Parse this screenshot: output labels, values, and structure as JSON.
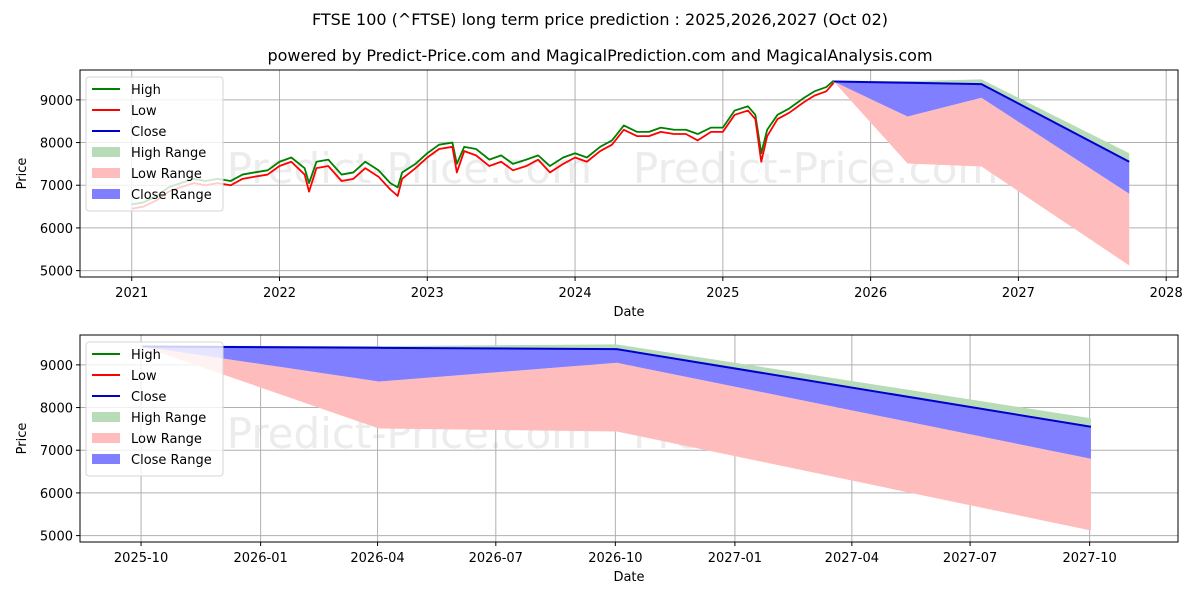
{
  "title": "FTSE 100 (^FTSE) long term price prediction : 2025,2026,2027 (Oct 02)",
  "subtitle": "powered by Predict-Price.com and MagicalPrediction.com and MagicalAnalysis.com",
  "watermark": "Predict-Price.com",
  "colors": {
    "high": "#008000",
    "low": "#ff0000",
    "close": "#0000cc",
    "high_range": "#b7dcb7",
    "low_range": "#ffbcbc",
    "close_range": "#7f7fff",
    "grid": "#b0b0b0",
    "watermark": "#ececec"
  },
  "legend": {
    "placement": "upper-left",
    "items": [
      {
        "label": "High",
        "kind": "line",
        "color": "#008000"
      },
      {
        "label": "Low",
        "kind": "line",
        "color": "#ff0000"
      },
      {
        "label": "Close",
        "kind": "line",
        "color": "#0000cc"
      },
      {
        "label": "High Range",
        "kind": "patch",
        "color": "#b7dcb7"
      },
      {
        "label": "Low Range",
        "kind": "patch",
        "color": "#ffbcbc"
      },
      {
        "label": "Close Range",
        "kind": "patch",
        "color": "#7f7fff"
      }
    ]
  },
  "chart_data": [
    {
      "type": "line",
      "name": "long-term-overview",
      "xlabel": "Date",
      "ylabel": "Price",
      "xlim": [
        2020.65,
        2028.08
      ],
      "ylim": [
        4850,
        9700
      ],
      "xticks": [
        2021,
        2022,
        2023,
        2024,
        2025,
        2026,
        2027,
        2028
      ],
      "xtick_labels": [
        "2021",
        "2022",
        "2023",
        "2024",
        "2025",
        "2026",
        "2027",
        "2028"
      ],
      "yticks": [
        5000,
        6000,
        7000,
        8000,
        9000
      ],
      "ytick_labels": [
        "5000",
        "6000",
        "7000",
        "8000",
        "9000"
      ],
      "grid": true,
      "historical": {
        "x": [
          2021.0,
          2021.08,
          2021.17,
          2021.25,
          2021.33,
          2021.42,
          2021.5,
          2021.58,
          2021.67,
          2021.75,
          2021.83,
          2021.92,
          2022.0,
          2022.08,
          2022.17,
          2022.2,
          2022.25,
          2022.33,
          2022.42,
          2022.5,
          2022.58,
          2022.67,
          2022.75,
          2022.8,
          2022.83,
          2022.92,
          2023.0,
          2023.08,
          2023.17,
          2023.2,
          2023.25,
          2023.33,
          2023.42,
          2023.5,
          2023.58,
          2023.67,
          2023.75,
          2023.83,
          2023.92,
          2024.0,
          2024.08,
          2024.17,
          2024.25,
          2024.33,
          2024.42,
          2024.5,
          2024.58,
          2024.67,
          2024.75,
          2024.83,
          2024.92,
          2025.0,
          2025.08,
          2025.17,
          2025.22,
          2025.26,
          2025.3,
          2025.37,
          2025.45,
          2025.55,
          2025.62,
          2025.7,
          2025.75
        ],
        "high": [
          6550,
          6600,
          6750,
          6950,
          7050,
          7150,
          7100,
          7150,
          7100,
          7250,
          7300,
          7350,
          7550,
          7650,
          7400,
          7050,
          7550,
          7600,
          7250,
          7300,
          7550,
          7350,
          7050,
          6950,
          7300,
          7500,
          7750,
          7950,
          8000,
          7500,
          7900,
          7850,
          7600,
          7700,
          7500,
          7600,
          7700,
          7450,
          7650,
          7750,
          7650,
          7900,
          8050,
          8400,
          8250,
          8250,
          8350,
          8300,
          8300,
          8200,
          8350,
          8350,
          8750,
          8850,
          8650,
          7750,
          8300,
          8650,
          8800,
          9050,
          9200,
          9300,
          9450
        ],
        "low": [
          6450,
          6500,
          6650,
          6850,
          6950,
          7050,
          7000,
          7050,
          7000,
          7150,
          7200,
          7250,
          7450,
          7550,
          7250,
          6850,
          7400,
          7450,
          7100,
          7150,
          7400,
          7200,
          6900,
          6750,
          7150,
          7400,
          7650,
          7850,
          7900,
          7300,
          7800,
          7700,
          7450,
          7550,
          7350,
          7450,
          7600,
          7300,
          7500,
          7650,
          7550,
          7800,
          7950,
          8300,
          8150,
          8150,
          8250,
          8200,
          8200,
          8050,
          8250,
          8250,
          8650,
          8750,
          8550,
          7550,
          8150,
          8550,
          8700,
          8950,
          9100,
          9200,
          9400
        ]
      },
      "forecast": {
        "x": [
          2025.75,
          2026.25,
          2026.75,
          2027.75
        ],
        "high_range": {
          "upper": [
            9450,
            9440,
            9480,
            7750
          ],
          "lower": [
            9430,
            9420,
            9370,
            7550
          ]
        },
        "low_range": {
          "upper": [
            9430,
            8610,
            9050,
            6800
          ],
          "lower": [
            9430,
            7510,
            7440,
            5120
          ]
        },
        "close_range": {
          "upper": [
            9430,
            9420,
            9370,
            7550
          ],
          "lower": [
            9430,
            8610,
            9050,
            6800
          ]
        },
        "close": [
          9430,
          9400,
          9370,
          7550
        ]
      }
    },
    {
      "type": "area",
      "name": "forecast-detail",
      "xlabel": "Date",
      "ylabel": "Price",
      "xlim": [
        "2025-08-15",
        "2027-12-08"
      ],
      "ylim": [
        4850,
        9700
      ],
      "xticks": [
        "2025-10-01",
        "2026-01-01",
        "2026-04-01",
        "2026-07-01",
        "2026-10-01",
        "2027-01-01",
        "2027-04-01",
        "2027-07-01",
        "2027-10-01"
      ],
      "xtick_labels": [
        "2025-10",
        "2026-01",
        "2026-04",
        "2026-07",
        "2026-10",
        "2027-01",
        "2027-04",
        "2027-07",
        "2027-10"
      ],
      "yticks": [
        5000,
        6000,
        7000,
        8000,
        9000
      ],
      "ytick_labels": [
        "5000",
        "6000",
        "7000",
        "8000",
        "9000"
      ],
      "grid": true,
      "x": [
        "2025-10-02",
        "2026-04-02",
        "2026-10-02",
        "2027-10-02"
      ],
      "series": [
        {
          "name": "High Range",
          "upper": [
            9450,
            9440,
            9480,
            7750
          ],
          "lower": [
            9430,
            9420,
            9370,
            7550
          ]
        },
        {
          "name": "Low Range",
          "upper": [
            9430,
            8610,
            9050,
            6800
          ],
          "lower": [
            9430,
            7510,
            7440,
            5120
          ]
        },
        {
          "name": "Close Range",
          "upper": [
            9430,
            9420,
            9370,
            7550
          ],
          "lower": [
            9430,
            8610,
            9050,
            6800
          ]
        },
        {
          "name": "Close",
          "values": [
            9430,
            9400,
            9370,
            7550
          ]
        }
      ]
    }
  ]
}
